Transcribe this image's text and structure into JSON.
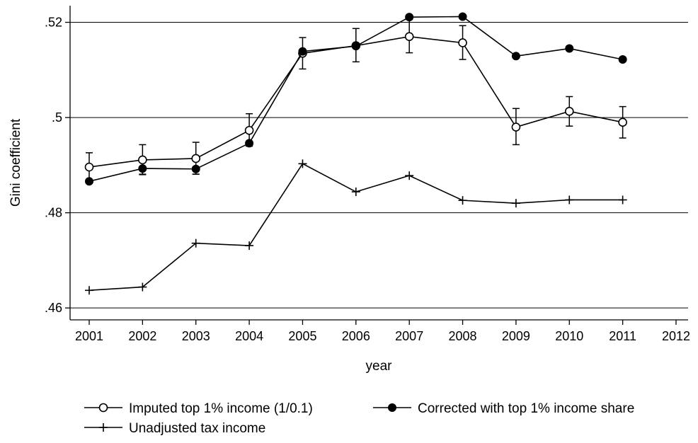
{
  "chart_data": {
    "type": "line",
    "xlabel": "year",
    "ylabel": "Gini coefficient",
    "x_ticks": [
      2001,
      2002,
      2003,
      2004,
      2005,
      2006,
      2007,
      2008,
      2009,
      2010,
      2011,
      2012
    ],
    "y_ticks": [
      {
        "value": 0.46,
        "label": ".46"
      },
      {
        "value": 0.48,
        "label": ".48"
      },
      {
        "value": 0.5,
        "label": ".5"
      },
      {
        "value": 0.52,
        "label": ".52"
      }
    ],
    "xlim": [
      2001,
      2012
    ],
    "ylim": [
      0.4575,
      0.5235
    ],
    "grid": "horizontal",
    "legend_position": "bottom",
    "series": [
      {
        "name": "Imputed top 1% income (1/0.1)",
        "marker": "hollow-circle",
        "x": [
          2001,
          2002,
          2003,
          2004,
          2005,
          2006,
          2007,
          2008,
          2009,
          2010,
          2011
        ],
        "values": [
          0.4896,
          0.4911,
          0.4914,
          0.4973,
          0.5135,
          0.5151,
          0.517,
          0.5157,
          0.498,
          0.5013,
          0.499
        ],
        "error_low": [
          0.4867,
          0.488,
          0.4881,
          0.494,
          0.5102,
          0.5117,
          0.5136,
          0.5122,
          0.4943,
          0.4982,
          0.4957
        ],
        "error_high": [
          0.4926,
          0.4943,
          0.4948,
          0.5008,
          0.5168,
          0.5187,
          0.5206,
          0.5193,
          0.5019,
          0.5044,
          0.5023
        ]
      },
      {
        "name": "Corrected with top 1% income share",
        "marker": "filled-circle",
        "x": [
          2001,
          2002,
          2003,
          2004,
          2005,
          2006,
          2007,
          2008,
          2009,
          2010,
          2011
        ],
        "values": [
          0.4866,
          0.4893,
          0.4892,
          0.4946,
          0.5139,
          0.515,
          0.5211,
          0.5212,
          0.5129,
          0.5145,
          0.5122
        ],
        "error_low": [
          null,
          0.4881,
          0.4881,
          0.494,
          null,
          null,
          null,
          null,
          null,
          null,
          null
        ],
        "error_high": [
          null,
          null,
          null,
          null,
          null,
          null,
          null,
          null,
          null,
          null,
          null
        ]
      },
      {
        "name": "Unadjusted tax income",
        "marker": "plus",
        "x": [
          2001,
          2002,
          2003,
          2004,
          2005,
          2006,
          2007,
          2008,
          2009,
          2010,
          2011
        ],
        "values": [
          0.4637,
          0.4644,
          0.4736,
          0.4731,
          0.4903,
          0.4844,
          0.4878,
          0.4826,
          0.482,
          0.4827,
          0.4827
        ]
      }
    ]
  }
}
